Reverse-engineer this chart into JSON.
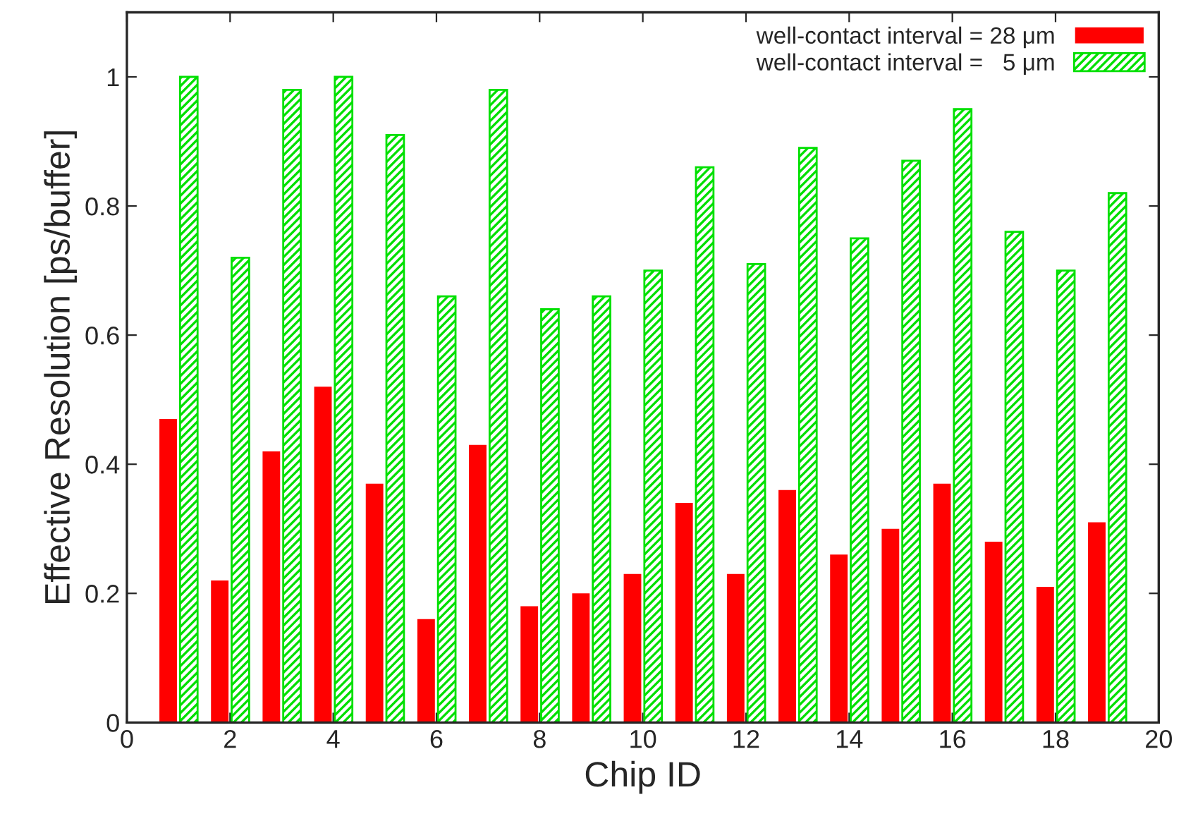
{
  "chart_data": {
    "type": "bar",
    "xlabel": "Chip ID",
    "ylabel": "Effective Resolution [ps/buffer]",
    "xlim": [
      0,
      20
    ],
    "xticks": [
      0,
      2,
      4,
      6,
      8,
      10,
      12,
      14,
      16,
      18,
      20
    ],
    "ylim": [
      0,
      1.1
    ],
    "yticks": [
      0,
      0.2,
      0.4,
      0.6,
      0.8,
      1
    ],
    "grid": false,
    "legend": "top right",
    "series": [
      {
        "name": "well-contact interval = 28 μm",
        "color": "#ff0000",
        "x": [
          0.8,
          1.8,
          2.8,
          3.8,
          4.8,
          5.8,
          6.8,
          7.8,
          8.8,
          9.8,
          10.8,
          11.8,
          12.8,
          13.8,
          14.8,
          15.8,
          16.8,
          17.8,
          18.8
        ],
        "values": [
          0.47,
          0.22,
          0.42,
          0.52,
          0.37,
          0.16,
          0.43,
          0.18,
          0.2,
          0.23,
          0.34,
          0.23,
          0.36,
          0.26,
          0.3,
          0.37,
          0.28,
          0.21,
          0.31
        ]
      },
      {
        "name": "well-contact interval =   5 μm",
        "color": "#00e000",
        "x": [
          1.2,
          2.2,
          3.2,
          4.2,
          5.2,
          6.2,
          7.2,
          8.2,
          9.2,
          10.2,
          11.2,
          12.2,
          13.2,
          14.2,
          15.2,
          16.2,
          17.2,
          18.2,
          19.2
        ],
        "values": [
          1.0,
          0.72,
          0.98,
          1.0,
          0.91,
          0.66,
          0.98,
          0.64,
          0.66,
          0.7,
          0.86,
          0.71,
          0.89,
          0.75,
          0.87,
          0.95,
          0.76,
          0.7,
          0.82
        ]
      }
    ]
  }
}
